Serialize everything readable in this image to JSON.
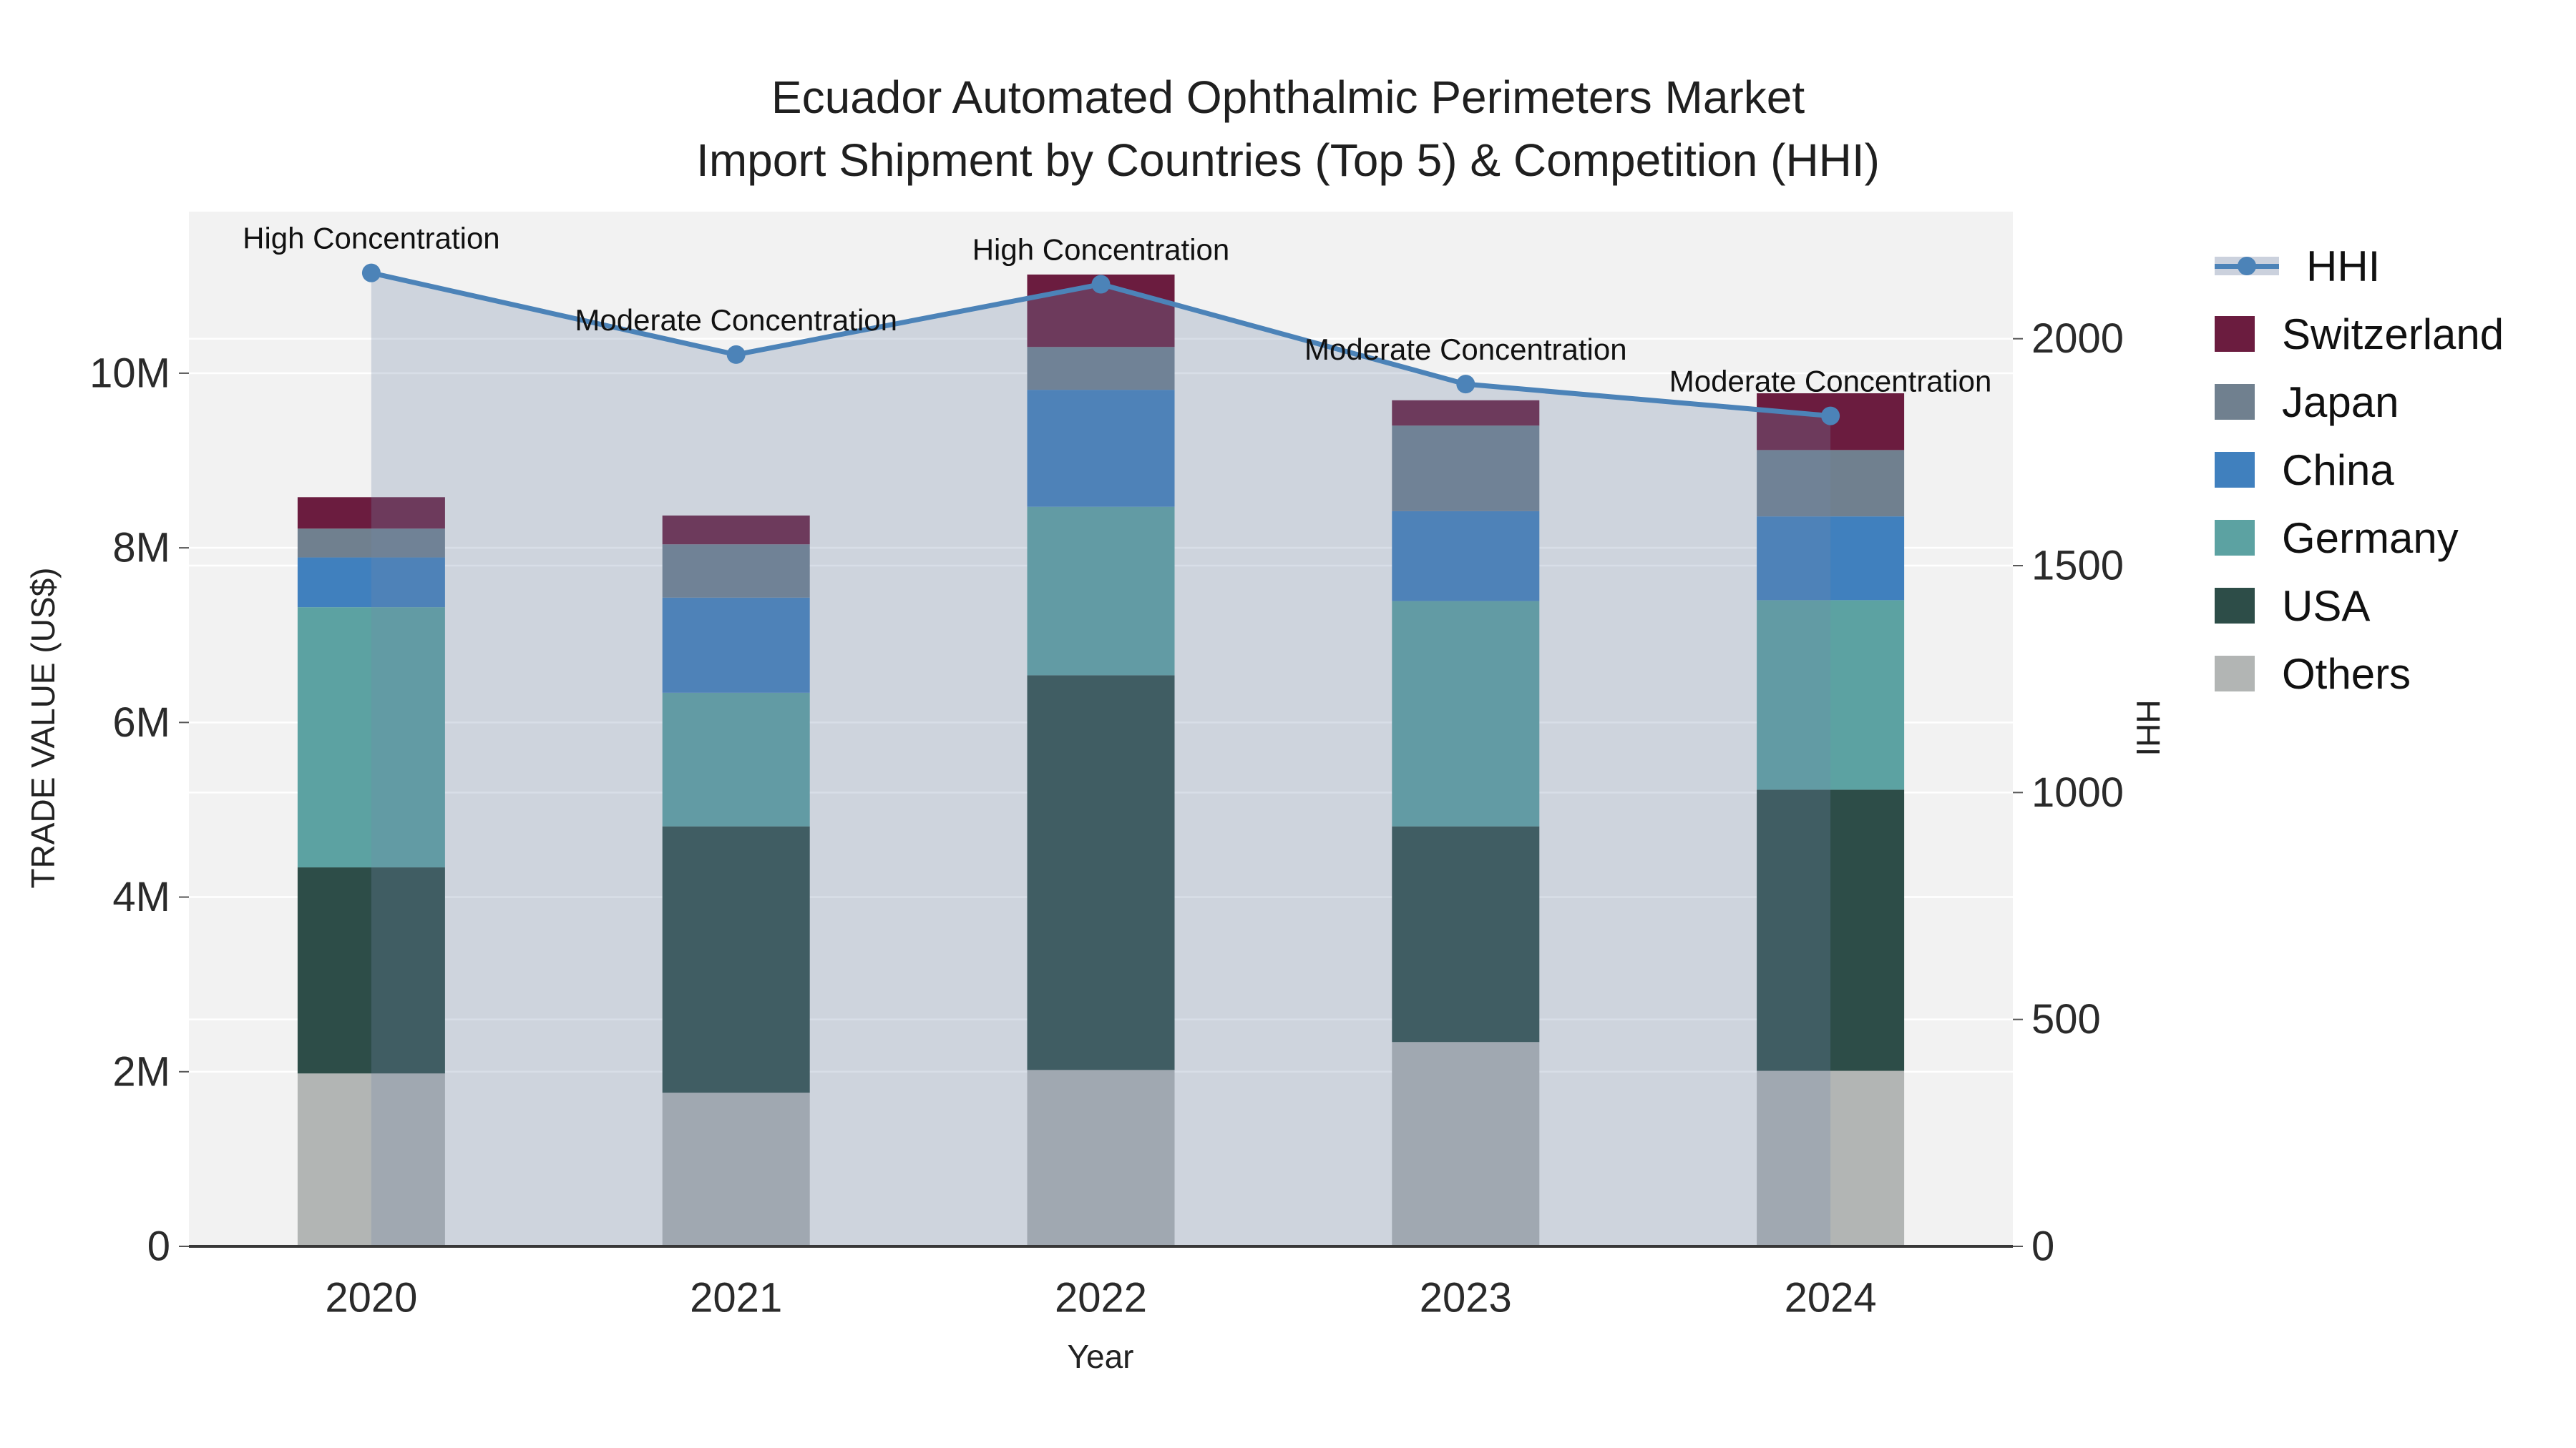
{
  "title": {
    "line1": "Ecuador Automated Ophthalmic Perimeters Market",
    "line2": "Import Shipment by Countries (Top 5) & Competition (HHI)"
  },
  "axes": {
    "x": {
      "title": "Year"
    },
    "y_left": {
      "title": "TRADE VALUE (US$)"
    },
    "y_right": {
      "title": "HHI"
    }
  },
  "legend": {
    "items": [
      {
        "label": "HHI",
        "type": "line",
        "color": "#4c83b8"
      },
      {
        "label": "Switzerland",
        "type": "swatch",
        "color": "#6b1c3f"
      },
      {
        "label": "Japan",
        "type": "swatch",
        "color": "#70808f"
      },
      {
        "label": "China",
        "type": "swatch",
        "color": "#4080be"
      },
      {
        "label": "Germany",
        "type": "swatch",
        "color": "#5ca2a2"
      },
      {
        "label": "USA",
        "type": "swatch",
        "color": "#2d4d48"
      },
      {
        "label": "Others",
        "type": "swatch",
        "color": "#b2b5b4"
      }
    ]
  },
  "chart_data": {
    "type": "combo-stacked-bar-line",
    "title": "Ecuador Automated Ophthalmic Perimeters Market Import Shipment by Countries (Top 5) & Competition (HHI)",
    "xlabel": "Year",
    "ylabel_left": "TRADE VALUE (US$)",
    "ylabel_right": "HHI",
    "categories": [
      "2020",
      "2021",
      "2022",
      "2023",
      "2024"
    ],
    "bar_value_unit": "US$",
    "series": [
      {
        "name": "Others",
        "color": "#b2b5b4",
        "values": [
          1980000,
          1760000,
          2020000,
          2340000,
          2010000
        ]
      },
      {
        "name": "USA",
        "color": "#2d4d48",
        "values": [
          2360000,
          3050000,
          4520000,
          2470000,
          3220000
        ]
      },
      {
        "name": "Germany",
        "color": "#5ca2a2",
        "values": [
          2980000,
          1530000,
          1930000,
          2580000,
          2170000
        ]
      },
      {
        "name": "China",
        "color": "#4080be",
        "values": [
          570000,
          1090000,
          1340000,
          1030000,
          960000
        ]
      },
      {
        "name": "Japan",
        "color": "#70808f",
        "values": [
          330000,
          610000,
          490000,
          980000,
          760000
        ]
      },
      {
        "name": "Switzerland",
        "color": "#6b1c3f",
        "values": [
          360000,
          330000,
          830000,
          290000,
          650000
        ]
      }
    ],
    "bar_totals": [
      8580000,
      8370000,
      11130000,
      9690000,
      9770000
    ],
    "line": {
      "name": "HHI",
      "color": "#4c83b8",
      "values": [
        2145,
        1965,
        2120,
        1900,
        1830
      ],
      "area_fill": "rgba(115,135,170,0.28)"
    },
    "annotations": [
      {
        "category": "2020",
        "text": "High Concentration"
      },
      {
        "category": "2021",
        "text": "Moderate Concentration"
      },
      {
        "category": "2022",
        "text": "High Concentration"
      },
      {
        "category": "2023",
        "text": "Moderate Concentration"
      },
      {
        "category": "2024",
        "text": "Moderate Concentration"
      }
    ],
    "ylim_left": [
      0,
      11850000
    ],
    "ylim_right": [
      0,
      2280
    ],
    "y_left_ticks": [
      {
        "v": 0,
        "label": "0"
      },
      {
        "v": 2000000,
        "label": "2M"
      },
      {
        "v": 4000000,
        "label": "4M"
      },
      {
        "v": 6000000,
        "label": "6M"
      },
      {
        "v": 8000000,
        "label": "8M"
      },
      {
        "v": 10000000,
        "label": "10M"
      }
    ],
    "y_right_ticks": [
      {
        "v": 0,
        "label": "0"
      },
      {
        "v": 500,
        "label": "500"
      },
      {
        "v": 1000,
        "label": "1000"
      },
      {
        "v": 1500,
        "label": "1500"
      },
      {
        "v": 2000,
        "label": "2000"
      }
    ],
    "grid": true,
    "legend_position": "right",
    "plot_bg": "#f2f2f2",
    "grid_color": "#ffffff",
    "axis_line_color": "#383838",
    "tick_label_color": "#2a2a2a",
    "annotation_color": "#111111"
  }
}
